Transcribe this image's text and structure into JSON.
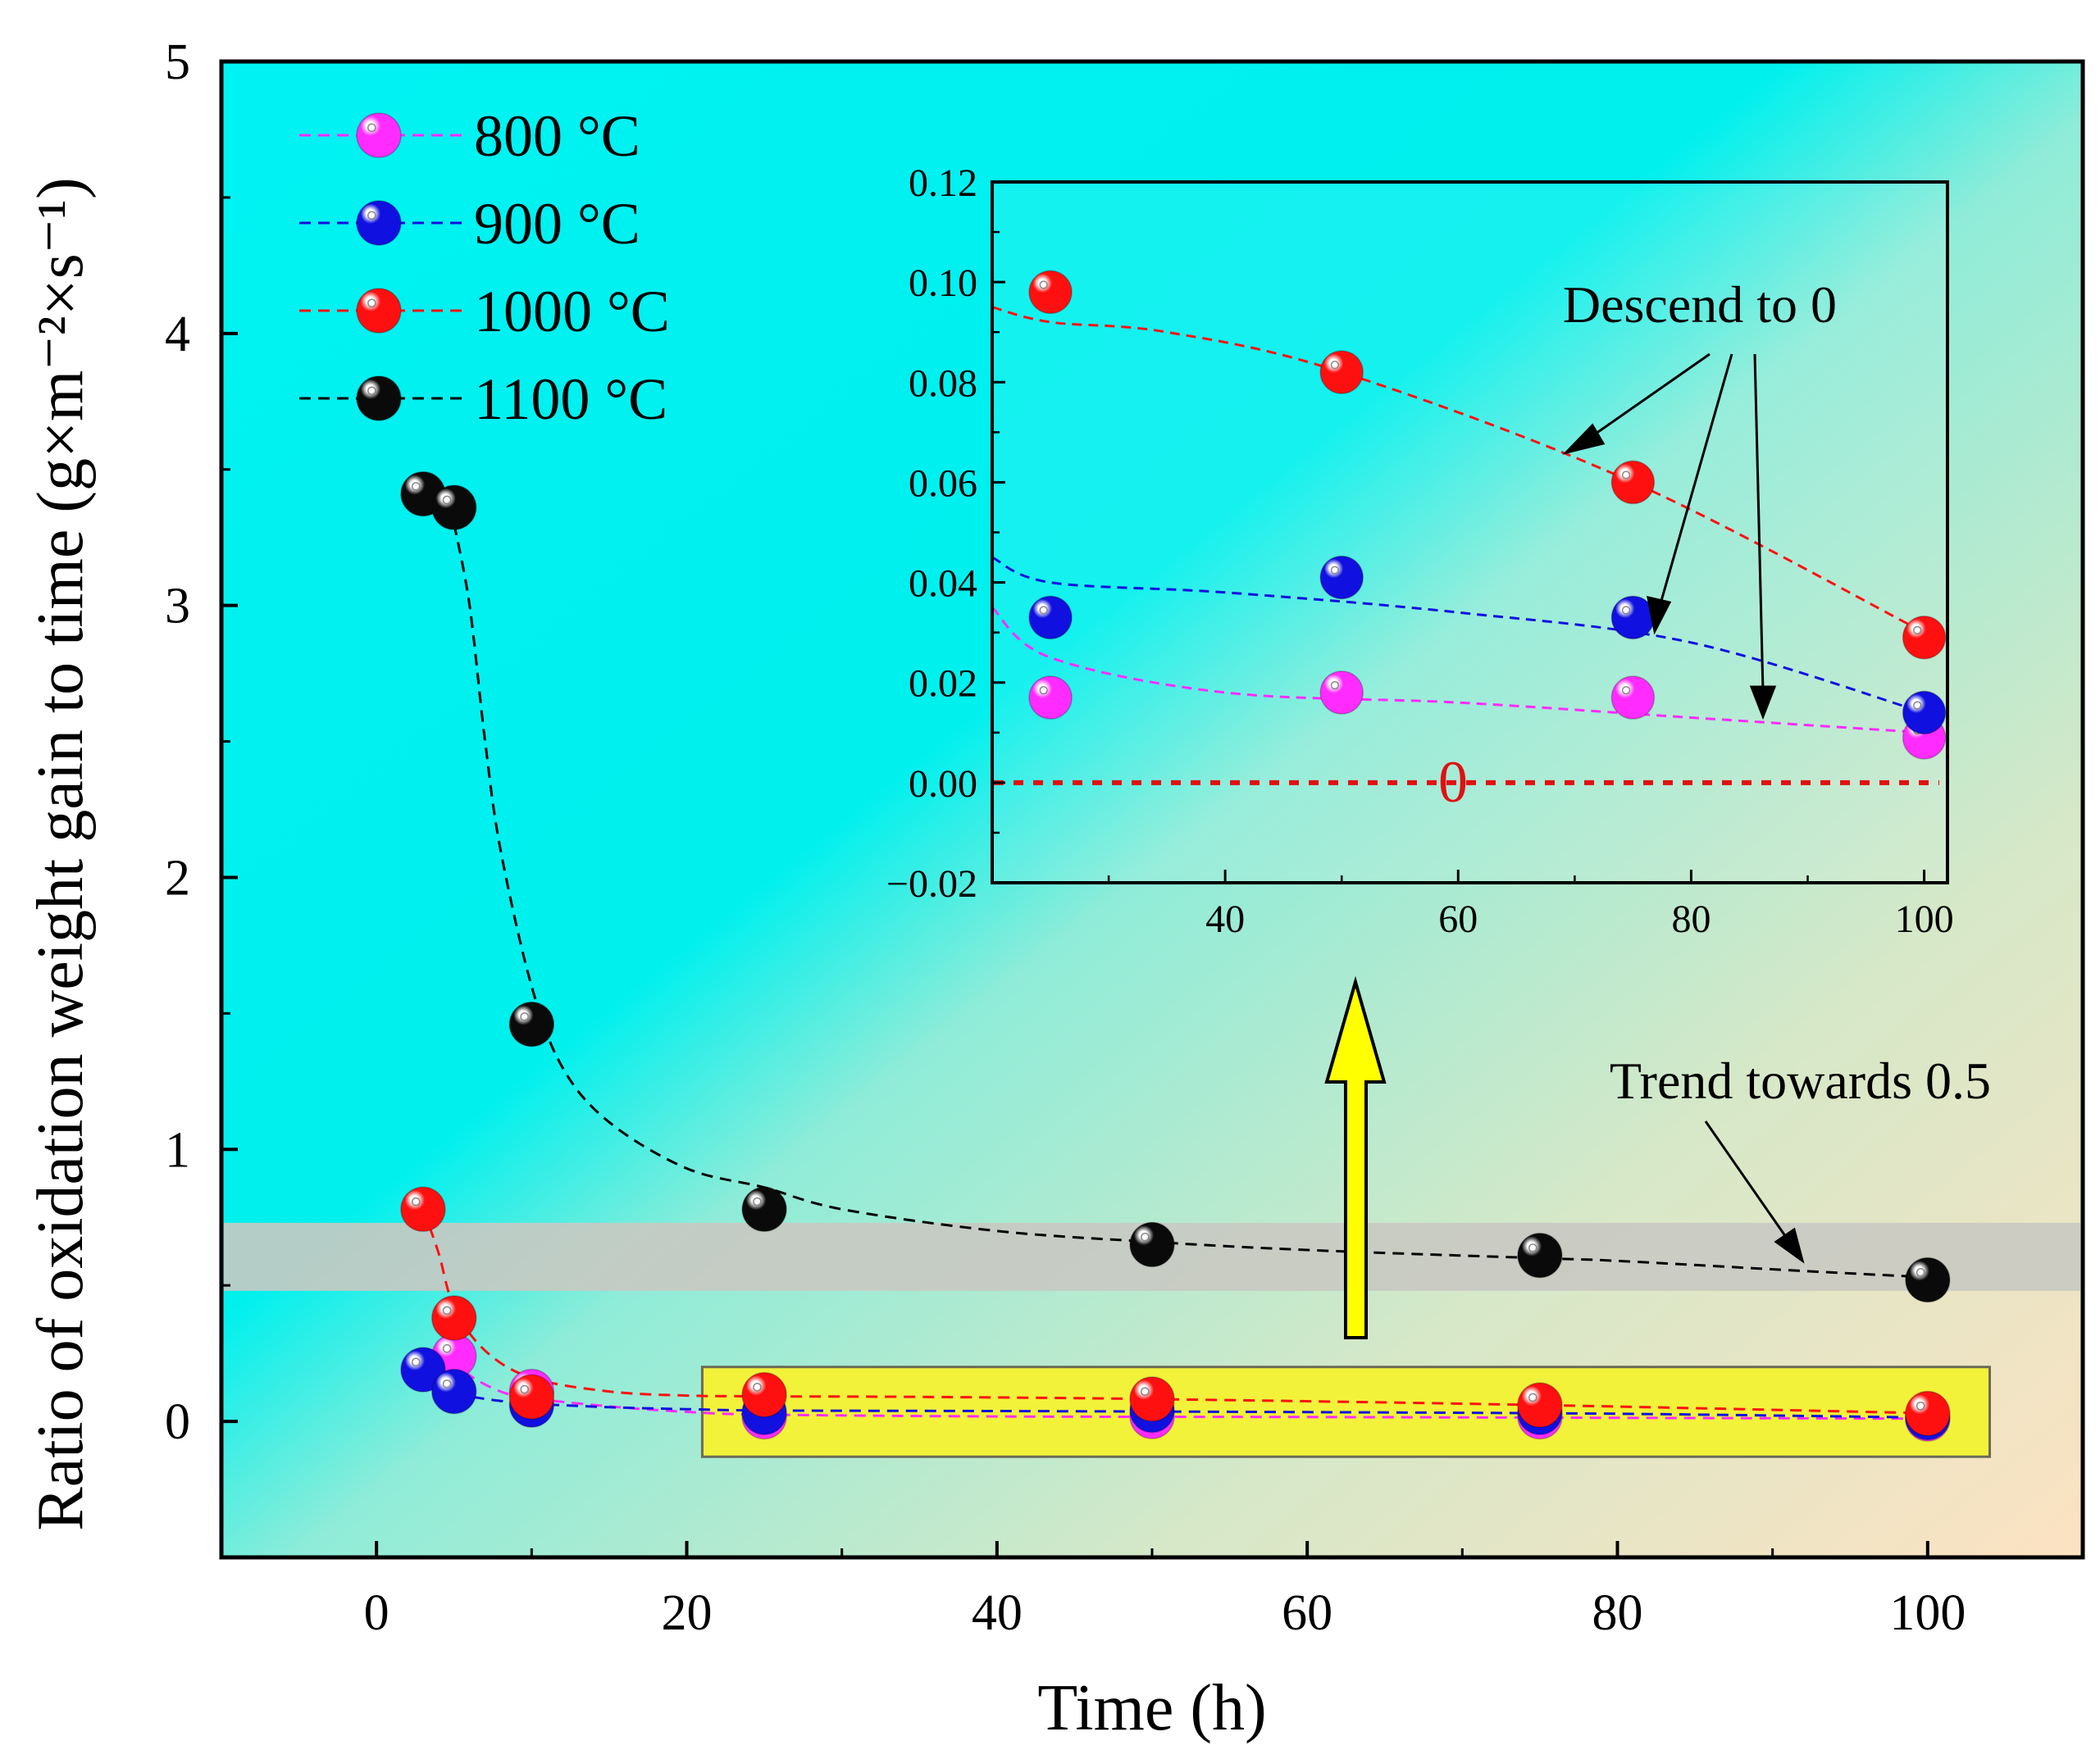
{
  "chart_data": [
    {
      "type": "scatter",
      "title": "",
      "xlabel": "Time (h)",
      "ylabel": "Ratio of oxidation weight gain to time (g×m⁻²×s⁻¹)",
      "xlim": [
        -10,
        110
      ],
      "ylim": [
        -0.5,
        5
      ],
      "xticks": [
        0,
        20,
        40,
        60,
        80,
        100
      ],
      "yticks": [
        0,
        1,
        2,
        3,
        4,
        5
      ],
      "legend": "top-left",
      "series": [
        {
          "name": "800 °C",
          "color": "#ff2bff",
          "x": [
            5,
            10,
            25,
            50,
            75,
            100
          ],
          "y": [
            0.24,
            0.11,
            0.017,
            0.018,
            0.017,
            0.009
          ],
          "fit": [
            [
              5,
              0.24
            ],
            [
              6,
              0.17
            ],
            [
              8,
              0.11
            ],
            [
              10,
              0.085
            ],
            [
              15,
              0.055
            ],
            [
              20,
              0.035
            ],
            [
              25,
              0.025
            ],
            [
              40,
              0.018
            ],
            [
              60,
              0.016
            ],
            [
              80,
              0.013
            ],
            [
              100,
              0.01
            ]
          ]
        },
        {
          "name": "900 °C",
          "color": "#1010e0",
          "x": [
            3,
            5,
            10,
            25,
            50,
            75,
            100
          ],
          "y": [
            0.19,
            0.11,
            0.06,
            0.033,
            0.041,
            0.033,
            0.014
          ],
          "fit": [
            [
              5,
              0.1
            ],
            [
              8,
              0.075
            ],
            [
              10,
              0.065
            ],
            [
              15,
              0.052
            ],
            [
              20,
              0.045
            ],
            [
              25,
              0.04
            ],
            [
              40,
              0.038
            ],
            [
              60,
              0.034
            ],
            [
              80,
              0.028
            ],
            [
              100,
              0.014
            ]
          ]
        },
        {
          "name": "1000 °C",
          "color": "#ff1010",
          "x": [
            3,
            5,
            10,
            25,
            50,
            75,
            100
          ],
          "y": [
            0.78,
            0.38,
            0.09,
            0.098,
            0.082,
            0.06,
            0.029
          ],
          "fit": [
            [
              3,
              0.78
            ],
            [
              4,
              0.62
            ],
            [
              5,
              0.42
            ],
            [
              7,
              0.26
            ],
            [
              10,
              0.16
            ],
            [
              15,
              0.11
            ],
            [
              20,
              0.095
            ],
            [
              25,
              0.092
            ],
            [
              35,
              0.09
            ],
            [
              50,
              0.082
            ],
            [
              75,
              0.06
            ],
            [
              100,
              0.03
            ]
          ]
        },
        {
          "name": "1100 °C",
          "color": "#0a0a0a",
          "x": [
            3,
            5,
            10,
            25,
            50,
            75,
            100
          ],
          "y": [
            3.41,
            3.36,
            1.46,
            0.78,
            0.65,
            0.61,
            0.52
          ],
          "fit": [
            [
              5,
              3.3
            ],
            [
              6,
              3.0
            ],
            [
              7,
              2.5
            ],
            [
              8,
              2.1
            ],
            [
              10,
              1.6
            ],
            [
              12,
              1.3
            ],
            [
              15,
              1.1
            ],
            [
              20,
              0.93
            ],
            [
              25,
              0.86
            ],
            [
              30,
              0.78
            ],
            [
              40,
              0.7
            ],
            [
              50,
              0.66
            ],
            [
              60,
              0.63
            ],
            [
              75,
              0.6
            ],
            [
              80,
              0.59
            ],
            [
              93,
              0.55
            ],
            [
              100,
              0.53
            ]
          ]
        }
      ],
      "annotations": {
        "trend_label": "Trend towards 0.5",
        "trend_band": [
          0.48,
          0.73
        ],
        "zoom_region": {
          "x": [
            21,
            104
          ],
          "y": [
            -0.13,
            0.2
          ]
        }
      }
    },
    {
      "type": "scatter",
      "title": "",
      "xlabel": "",
      "ylabel": "",
      "xlim": [
        20,
        102
      ],
      "ylim": [
        -0.02,
        0.12
      ],
      "xticks": [
        40,
        60,
        80,
        100
      ],
      "yticks": [
        -0.02,
        0.0,
        0.02,
        0.04,
        0.06,
        0.08,
        0.1,
        0.12
      ],
      "series": [
        {
          "name": "800 °C",
          "x": [
            25,
            50,
            75,
            100
          ],
          "y": [
            0.017,
            0.018,
            0.017,
            0.009
          ]
        },
        {
          "name": "900 °C",
          "x": [
            25,
            50,
            75,
            100
          ],
          "y": [
            0.033,
            0.041,
            0.033,
            0.014
          ]
        },
        {
          "name": "1000 °C",
          "x": [
            25,
            50,
            75,
            100
          ],
          "y": [
            0.098,
            0.082,
            0.06,
            0.029
          ]
        }
      ],
      "annotations": {
        "descend_label": "Descend to 0",
        "zero_label": "0",
        "zero_line": 0
      }
    }
  ],
  "colors": {
    "background_top_left": "#00f2f2",
    "background_bottom_right": "#fbe4c4",
    "band": "#c9c9c2",
    "zoom_box": "#f2f23a",
    "arrow": "#ffff00"
  },
  "inset_tick_labels": [
    "−0.02",
    "0.00",
    "0.02",
    "0.04",
    "0.06",
    "0.08",
    "0.10",
    "0.12"
  ]
}
